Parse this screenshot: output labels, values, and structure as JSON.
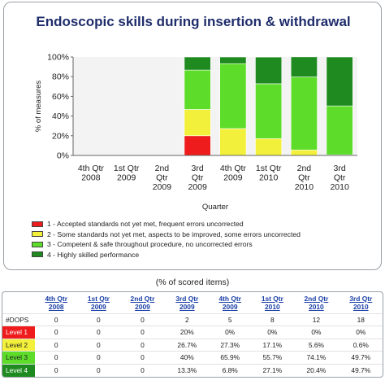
{
  "chart_data": {
    "type": "bar",
    "stacked": true,
    "title": "Endoscopic skills during insertion & withdrawal",
    "xlabel": "Quarter",
    "ylabel": "% of measures",
    "ylim": [
      0,
      100
    ],
    "yticks": [
      "0%",
      "20%",
      "40%",
      "60%",
      "80%",
      "100%"
    ],
    "grid": false,
    "legend_placement": "bottom",
    "categories": [
      [
        "4th Qtr",
        "2008"
      ],
      [
        "1st Qtr",
        "2009"
      ],
      [
        "2nd",
        "Qtr",
        "2009"
      ],
      [
        "3rd",
        "Qtr",
        "2009"
      ],
      [
        "4th Qtr",
        "2009"
      ],
      [
        "1st Qtr",
        "2010"
      ],
      [
        "2nd",
        "Qtr",
        "2010"
      ],
      [
        "3rd",
        "Qtr",
        "2010"
      ]
    ],
    "series": [
      {
        "name": "1 - Accepted standards not yet met, frequent errors uncorrected",
        "color": "#ee1c1c",
        "values": [
          0,
          0,
          0,
          20,
          0,
          0,
          0,
          0
        ]
      },
      {
        "name": "2 - Some standards not yet met, aspects to be improved, some errors uncorrected",
        "color": "#f2f03a",
        "values": [
          0,
          0,
          0,
          26.7,
          27.3,
          17.1,
          5.6,
          0.6
        ]
      },
      {
        "name": "3 - Competent & safe throughout procedure, no uncorrected errors",
        "color": "#5ddc2a",
        "values": [
          0,
          0,
          0,
          40,
          65.9,
          55.7,
          74.1,
          49.7
        ]
      },
      {
        "name": "4 - Highly skilled performance",
        "color": "#1f8a1f",
        "values": [
          0,
          0,
          0,
          13.3,
          6.8,
          27.1,
          20.4,
          49.7
        ]
      }
    ]
  },
  "table": {
    "caption": "(% of scored items)",
    "headers": [
      [
        "4th Qtr",
        "2008"
      ],
      [
        "1st Qtr",
        "2009"
      ],
      [
        "2nd Qtr",
        "2009"
      ],
      [
        "3rd Qtr",
        "2009"
      ],
      [
        "4th Qtr",
        "2009"
      ],
      [
        "1st Qtr",
        "2010"
      ],
      [
        "2nd Qtr",
        "2010"
      ],
      [
        "3rd Qtr",
        "2010"
      ]
    ],
    "rows": [
      {
        "label": "#DOPS",
        "cls": "dops",
        "values": [
          "0",
          "0",
          "0",
          "2",
          "5",
          "8",
          "12",
          "18"
        ]
      },
      {
        "label": "Level 1",
        "cls": "lvl1",
        "values": [
          "0",
          "0",
          "0",
          "20%",
          "0%",
          "0%",
          "0%",
          "0%"
        ]
      },
      {
        "label": "Level 2",
        "cls": "lvl2",
        "values": [
          "0",
          "0",
          "0",
          "26.7%",
          "27.3%",
          "17.1%",
          "5.6%",
          "0.6%"
        ]
      },
      {
        "label": "Level 3",
        "cls": "lvl3",
        "values": [
          "0",
          "0",
          "0",
          "40%",
          "65.9%",
          "55.7%",
          "74.1%",
          "49.7%"
        ]
      },
      {
        "label": "Level 4",
        "cls": "lvl4",
        "values": [
          "0",
          "0",
          "0",
          "13.3%",
          "6.8%",
          "27.1%",
          "20.4%",
          "49.7%"
        ]
      }
    ]
  }
}
